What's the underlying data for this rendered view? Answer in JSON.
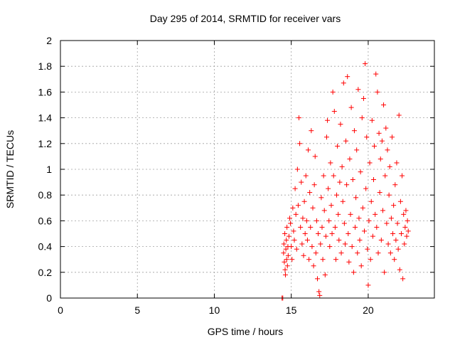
{
  "chart_data": {
    "type": "scatter",
    "title": "Day 295 of 2014, SRMTID for receiver vars",
    "xlabel": "GPS time / hours",
    "ylabel": "SRMTID / TECUs",
    "xlim": [
      0,
      24.3
    ],
    "ylim": [
      0,
      2
    ],
    "x_ticks": [
      0,
      5,
      10,
      15,
      20
    ],
    "x_tick_labels": [
      "0",
      "5",
      "10",
      "15",
      "20"
    ],
    "y_ticks": [
      0,
      0.2,
      0.4,
      0.6,
      0.8,
      1,
      1.2,
      1.4,
      1.6,
      1.8,
      2
    ],
    "y_tick_labels": [
      "0",
      "0.2",
      "0.4",
      "0.6",
      "0.8",
      "1",
      "1.2",
      "1.4",
      "1.6",
      "1.8",
      "2"
    ],
    "grid": true,
    "marker": "+",
    "marker_color": "#ff0000",
    "series": [
      {
        "name": "SRMTID",
        "points": [
          [
            14.4,
            0.0
          ],
          [
            14.45,
            0.0
          ],
          [
            14.5,
            0.35
          ],
          [
            14.52,
            0.42
          ],
          [
            14.55,
            0.28
          ],
          [
            14.58,
            0.5
          ],
          [
            14.6,
            0.22
          ],
          [
            14.62,
            0.18
          ],
          [
            14.65,
            0.38
          ],
          [
            14.68,
            0.45
          ],
          [
            14.7,
            0.3
          ],
          [
            14.72,
            0.55
          ],
          [
            14.75,
            0.25
          ],
          [
            14.78,
            0.4
          ],
          [
            14.8,
            0.33
          ],
          [
            14.85,
            0.48
          ],
          [
            14.9,
            0.62
          ],
          [
            14.95,
            0.58
          ],
          [
            15.0,
            0.4
          ],
          [
            15.05,
            0.3
          ],
          [
            15.1,
            0.7
          ],
          [
            15.15,
            0.52
          ],
          [
            15.2,
            0.45
          ],
          [
            15.25,
            0.85
          ],
          [
            15.3,
            0.65
          ],
          [
            15.35,
            0.38
          ],
          [
            15.4,
            1.0
          ],
          [
            15.45,
            0.72
          ],
          [
            15.5,
            1.4
          ],
          [
            15.55,
            1.2
          ],
          [
            15.6,
            0.55
          ],
          [
            15.65,
            0.9
          ],
          [
            15.7,
            0.42
          ],
          [
            15.75,
            0.62
          ],
          [
            15.8,
            0.33
          ],
          [
            15.85,
            0.75
          ],
          [
            15.9,
            0.5
          ],
          [
            15.95,
            0.95
          ],
          [
            16.0,
            0.6
          ],
          [
            16.05,
            0.45
          ],
          [
            16.1,
            1.15
          ],
          [
            16.15,
            0.3
          ],
          [
            16.2,
            0.82
          ],
          [
            16.25,
            0.55
          ],
          [
            16.3,
            1.3
          ],
          [
            16.35,
            0.4
          ],
          [
            16.4,
            0.7
          ],
          [
            16.45,
            0.25
          ],
          [
            16.5,
            0.88
          ],
          [
            16.55,
            1.1
          ],
          [
            16.6,
            0.35
          ],
          [
            16.65,
            0.6
          ],
          [
            16.7,
            0.15
          ],
          [
            16.75,
            0.5
          ],
          [
            16.8,
            0.05
          ],
          [
            16.85,
            0.02
          ],
          [
            16.9,
            0.42
          ],
          [
            16.95,
            0.78
          ],
          [
            17.0,
            0.55
          ],
          [
            17.05,
            0.3
          ],
          [
            17.1,
            0.95
          ],
          [
            17.15,
            0.68
          ],
          [
            17.2,
            0.18
          ],
          [
            17.25,
            0.48
          ],
          [
            17.3,
            1.25
          ],
          [
            17.35,
            1.38
          ],
          [
            17.4,
            0.85
          ],
          [
            17.45,
            0.6
          ],
          [
            17.5,
            0.4
          ],
          [
            17.55,
            1.05
          ],
          [
            17.6,
            0.72
          ],
          [
            17.65,
            0.5
          ],
          [
            17.7,
            1.6
          ],
          [
            17.75,
            0.95
          ],
          [
            17.8,
            1.45
          ],
          [
            17.85,
            0.55
          ],
          [
            17.9,
            0.3
          ],
          [
            17.95,
            0.8
          ],
          [
            18.0,
            1.18
          ],
          [
            18.05,
            0.65
          ],
          [
            18.1,
            0.45
          ],
          [
            18.15,
            0.9
          ],
          [
            18.2,
            1.35
          ],
          [
            18.25,
            0.35
          ],
          [
            18.3,
            1.02
          ],
          [
            18.35,
            0.75
          ],
          [
            18.4,
            1.67
          ],
          [
            18.45,
            0.58
          ],
          [
            18.5,
            0.42
          ],
          [
            18.55,
            1.22
          ],
          [
            18.6,
            0.88
          ],
          [
            18.65,
            1.72
          ],
          [
            18.7,
            0.5
          ],
          [
            18.75,
            0.28
          ],
          [
            18.8,
            1.08
          ],
          [
            18.85,
            0.65
          ],
          [
            18.9,
            1.48
          ],
          [
            18.95,
            0.4
          ],
          [
            19.0,
            0.92
          ],
          [
            19.05,
            0.2
          ],
          [
            19.1,
            1.3
          ],
          [
            19.15,
            0.55
          ],
          [
            19.2,
            0.78
          ],
          [
            19.25,
            1.15
          ],
          [
            19.3,
            0.35
          ],
          [
            19.35,
            1.62
          ],
          [
            19.4,
            0.62
          ],
          [
            19.45,
            0.45
          ],
          [
            19.5,
            0.98
          ],
          [
            19.55,
            0.25
          ],
          [
            19.6,
            1.4
          ],
          [
            19.65,
            0.7
          ],
          [
            19.7,
            1.55
          ],
          [
            19.75,
            0.52
          ],
          [
            19.8,
            1.82
          ],
          [
            19.85,
            0.85
          ],
          [
            19.9,
            1.25
          ],
          [
            19.95,
            0.38
          ],
          [
            20.0,
            0.1
          ],
          [
            20.05,
            0.6
          ],
          [
            20.1,
            1.05
          ],
          [
            20.15,
            0.3
          ],
          [
            20.2,
            0.75
          ],
          [
            20.25,
            1.38
          ],
          [
            20.3,
            0.48
          ],
          [
            20.35,
            0.92
          ],
          [
            20.4,
            1.18
          ],
          [
            20.45,
            0.65
          ],
          [
            20.5,
            1.74
          ],
          [
            20.55,
            0.55
          ],
          [
            20.6,
            1.6
          ],
          [
            20.65,
            0.35
          ],
          [
            20.7,
            1.28
          ],
          [
            20.75,
            0.82
          ],
          [
            20.8,
            1.08
          ],
          [
            20.85,
            0.45
          ],
          [
            20.9,
            1.22
          ],
          [
            20.95,
            0.68
          ],
          [
            21.0,
            1.5
          ],
          [
            21.05,
            0.2
          ],
          [
            21.1,
            0.95
          ],
          [
            21.15,
            1.32
          ],
          [
            21.2,
            0.58
          ],
          [
            21.25,
            1.15
          ],
          [
            21.3,
            0.42
          ],
          [
            21.35,
            0.8
          ],
          [
            21.4,
            1.02
          ],
          [
            21.45,
            0.35
          ],
          [
            21.5,
            0.62
          ],
          [
            21.55,
            1.25
          ],
          [
            21.6,
            0.5
          ],
          [
            21.65,
            0.72
          ],
          [
            21.7,
            0.3
          ],
          [
            21.75,
            0.88
          ],
          [
            21.8,
            0.45
          ],
          [
            21.85,
            1.05
          ],
          [
            21.9,
            0.58
          ],
          [
            21.95,
            0.38
          ],
          [
            22.0,
            1.42
          ],
          [
            22.05,
            0.22
          ],
          [
            22.1,
            0.75
          ],
          [
            22.15,
            0.5
          ],
          [
            22.2,
            0.95
          ],
          [
            22.25,
            0.15
          ],
          [
            22.3,
            0.65
          ],
          [
            22.35,
            0.42
          ],
          [
            22.4,
            0.55
          ],
          [
            22.45,
            0.68
          ],
          [
            22.5,
            0.48
          ],
          [
            22.55,
            0.6
          ],
          [
            22.6,
            0.52
          ]
        ]
      }
    ]
  }
}
